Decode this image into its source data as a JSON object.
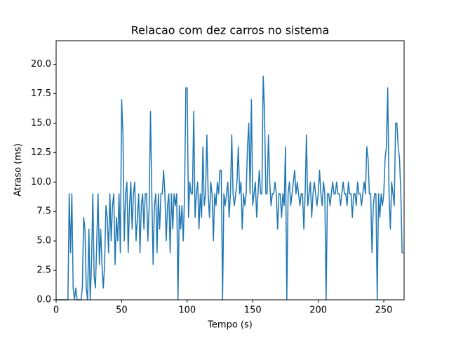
{
  "chart_data": {
    "type": "line",
    "title": "Relacao com dez carros no sistema",
    "x_label": "Tempo (s)",
    "y_label": "Atraso (ms)",
    "x": [
      0,
      1,
      2,
      3,
      4,
      5,
      6,
      7,
      8,
      9,
      10,
      11,
      12,
      13,
      14,
      15,
      16,
      17,
      18,
      19,
      20,
      21,
      22,
      23,
      24,
      25,
      26,
      27,
      28,
      29,
      30,
      31,
      32,
      33,
      34,
      35,
      36,
      37,
      38,
      39,
      40,
      41,
      42,
      43,
      44,
      45,
      46,
      47,
      48,
      49,
      50,
      51,
      52,
      53,
      54,
      55,
      56,
      57,
      58,
      59,
      60,
      61,
      62,
      63,
      64,
      65,
      66,
      67,
      68,
      69,
      70,
      71,
      72,
      73,
      74,
      75,
      76,
      77,
      78,
      79,
      80,
      81,
      82,
      83,
      84,
      85,
      86,
      87,
      88,
      89,
      90,
      91,
      92,
      93,
      94,
      95,
      96,
      97,
      98,
      99,
      100,
      101,
      102,
      103,
      104,
      105,
      106,
      107,
      108,
      109,
      110,
      111,
      112,
      113,
      114,
      115,
      116,
      117,
      118,
      119,
      120,
      121,
      122,
      123,
      124,
      125,
      126,
      127,
      128,
      129,
      130,
      131,
      132,
      133,
      134,
      135,
      136,
      137,
      138,
      139,
      140,
      141,
      142,
      143,
      144,
      145,
      146,
      147,
      148,
      149,
      150,
      151,
      152,
      153,
      154,
      155,
      156,
      157,
      158,
      159,
      160,
      161,
      162,
      163,
      164,
      165,
      166,
      167,
      168,
      169,
      170,
      171,
      172,
      173,
      174,
      175,
      176,
      177,
      178,
      179,
      180,
      181,
      182,
      183,
      184,
      185,
      186,
      187,
      188,
      189,
      190,
      191,
      192,
      193,
      194,
      195,
      196,
      197,
      198,
      199,
      200,
      201,
      202,
      203,
      204,
      205,
      206,
      207,
      208,
      209,
      210,
      211,
      212,
      213,
      214,
      215,
      216,
      217,
      218,
      219,
      220,
      221,
      222,
      223,
      224,
      225,
      226,
      227,
      228,
      229,
      230,
      231,
      232,
      233,
      234,
      235,
      236,
      237,
      238,
      239,
      240,
      241,
      242,
      243,
      244,
      245,
      246,
      247,
      248,
      249,
      250,
      251,
      252,
      253,
      254,
      255,
      256,
      257,
      258,
      259,
      260,
      261,
      262,
      263,
      264,
      265
    ],
    "series": [
      {
        "name": "Atraso",
        "color": "#1f77b4",
        "values": [
          0,
          0,
          0,
          0,
          0,
          0,
          0,
          0,
          0,
          0,
          9,
          4,
          9,
          1,
          0,
          1,
          0,
          0,
          0,
          0,
          1,
          7,
          6,
          1,
          0,
          6,
          0,
          3,
          9,
          2,
          1,
          5,
          9,
          3,
          6,
          3,
          1,
          3,
          8,
          7,
          4,
          9,
          5,
          8,
          9,
          3,
          7,
          5,
          9,
          4,
          17,
          14,
          5,
          9,
          10,
          4,
          8,
          10,
          6,
          9,
          10,
          5,
          7,
          9,
          4,
          8,
          9,
          6,
          9,
          9,
          5,
          8,
          16,
          9,
          3,
          8,
          9,
          4,
          9,
          6,
          9,
          9,
          11,
          9,
          5,
          8,
          9,
          4,
          9,
          6,
          9,
          8,
          9,
          0,
          8,
          6,
          8,
          5,
          9,
          18,
          18,
          7,
          10,
          9,
          9,
          16,
          7,
          9,
          10,
          6,
          9,
          7,
          13,
          8,
          9,
          14,
          9,
          7,
          10,
          9,
          5,
          9,
          8,
          10,
          9,
          11,
          11,
          0,
          9,
          8,
          9,
          10,
          7,
          9,
          14,
          9,
          8,
          9,
          10,
          13,
          9,
          10,
          6,
          9,
          8,
          9,
          13,
          15,
          9,
          17,
          8,
          9,
          10,
          7,
          9,
          11,
          9,
          9,
          19,
          16,
          9,
          9,
          14,
          10,
          8,
          9,
          9,
          10,
          9,
          6,
          9,
          9,
          7,
          9,
          8,
          13,
          0,
          9,
          10,
          8,
          9,
          10,
          11,
          9,
          10,
          9,
          8,
          9,
          9,
          6,
          9,
          14,
          8,
          9,
          10,
          7,
          9,
          10,
          9,
          8,
          9,
          11,
          9,
          8,
          10,
          9,
          0,
          9,
          9,
          8,
          9,
          10,
          9,
          9,
          10,
          9,
          9,
          8,
          9,
          10,
          9,
          9,
          8,
          10,
          9,
          9,
          7,
          9,
          9,
          8,
          10,
          9,
          9,
          8,
          9,
          10,
          9,
          13,
          12,
          9,
          9,
          4,
          8,
          9,
          9,
          0,
          9,
          7,
          9,
          8,
          9,
          12,
          13,
          18,
          9,
          6,
          10,
          9,
          8,
          15,
          15,
          13,
          12,
          9,
          4,
          4
        ]
      }
    ],
    "xlim": [
      0,
      265.5
    ],
    "ylim": [
      0,
      22
    ],
    "xticks": [
      0,
      50,
      100,
      150,
      200,
      250
    ],
    "yticks": [
      {
        "value": 0,
        "label": "0.0"
      },
      2.5,
      {
        "value": 5,
        "label": "5.0"
      },
      7.5,
      {
        "value": 10,
        "label": "10.0"
      },
      12.5,
      {
        "value": 15,
        "label": "15.0"
      },
      17.5,
      {
        "value": 20,
        "label": "20.0"
      }
    ]
  }
}
